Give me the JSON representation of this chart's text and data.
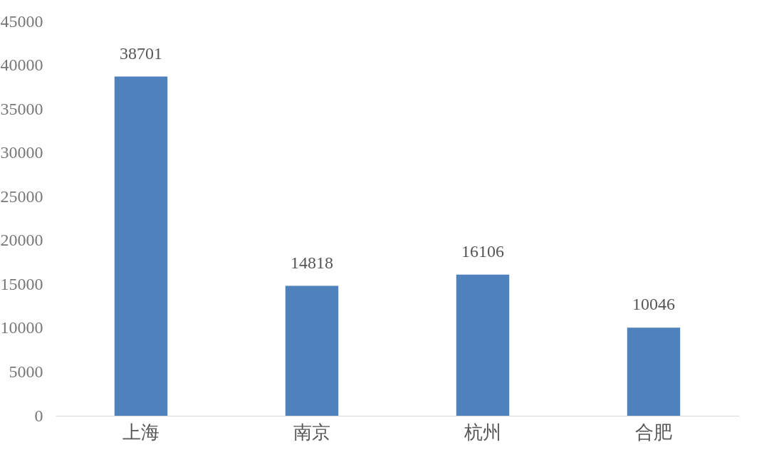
{
  "chart_data": {
    "type": "bar",
    "categories": [
      "上海",
      "南京",
      "杭州",
      "合肥"
    ],
    "values": [
      38701,
      14818,
      16106,
      10046
    ],
    "color": "#4f81bd",
    "ylim": [
      0,
      45000
    ],
    "yticks": [
      0,
      5000,
      10000,
      15000,
      20000,
      25000,
      30000,
      35000,
      40000,
      45000
    ],
    "grid": false,
    "data_labels": true
  }
}
